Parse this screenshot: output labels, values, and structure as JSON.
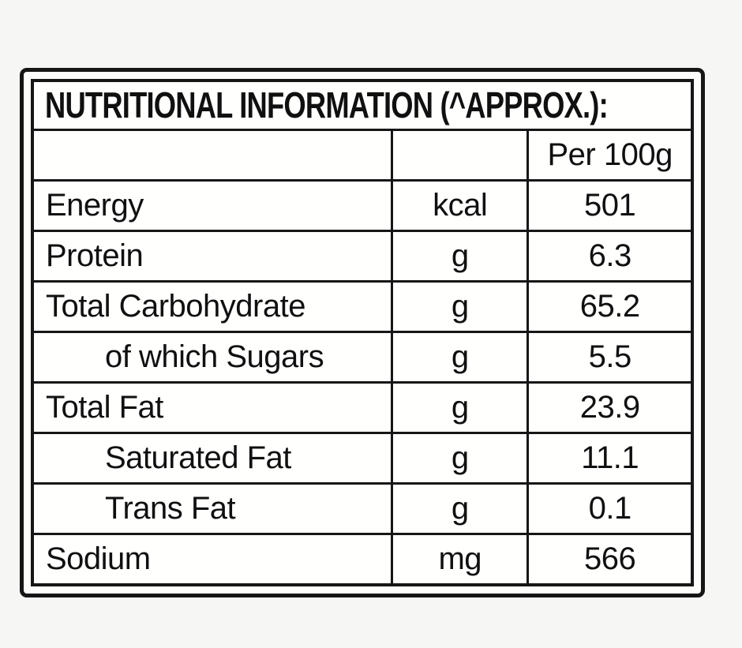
{
  "table": {
    "title": "NUTRITIONAL INFORMATION (^APPROX.):",
    "header": {
      "per_label": "Per 100g"
    },
    "rows": [
      {
        "label": "Energy",
        "unit": "kcal",
        "value": "501",
        "indent": false
      },
      {
        "label": "Protein",
        "unit": "g",
        "value": "6.3",
        "indent": false
      },
      {
        "label": "Total Carbohydrate",
        "unit": "g",
        "value": "65.2",
        "indent": false
      },
      {
        "label": "of which Sugars",
        "unit": "g",
        "value": "5.5",
        "indent": true
      },
      {
        "label": "Total Fat",
        "unit": "g",
        "value": "23.9",
        "indent": false
      },
      {
        "label": "Saturated Fat",
        "unit": "g",
        "value": "11.1",
        "indent": true
      },
      {
        "label": "Trans Fat",
        "unit": "g",
        "value": "0.1",
        "indent": true
      },
      {
        "label": "Sodium",
        "unit": "mg",
        "value": "566",
        "indent": false
      }
    ],
    "colors": {
      "border": "#161616",
      "text": "#101010",
      "cell_background": "#ffffff",
      "page_background": "#f6f6f5"
    }
  }
}
